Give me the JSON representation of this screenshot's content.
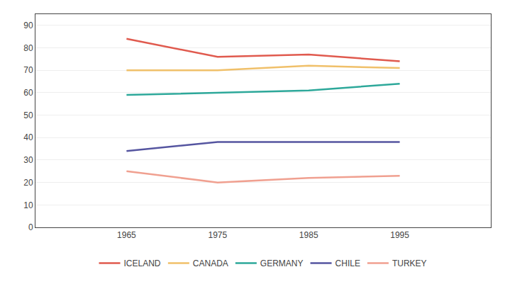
{
  "chart_data": {
    "type": "line",
    "x": [
      1965,
      1975,
      1985,
      1995
    ],
    "series": [
      {
        "name": "ICELAND",
        "color": "#e05a4e",
        "values": [
          84,
          76,
          77,
          74
        ]
      },
      {
        "name": "CANADA",
        "color": "#f0c06a",
        "values": [
          70,
          70,
          72,
          71
        ]
      },
      {
        "name": "GERMANY",
        "color": "#2da89a",
        "values": [
          59,
          60,
          61,
          64
        ]
      },
      {
        "name": "CHILE",
        "color": "#5555a0",
        "values": [
          34,
          38,
          38,
          38
        ]
      },
      {
        "name": "TURKEY",
        "color": "#f0a090",
        "values": [
          25,
          20,
          22,
          23
        ]
      }
    ],
    "xlim": [
      1955,
      2005
    ],
    "xticks": [
      1965,
      1975,
      1985,
      1995
    ],
    "ylim": [
      0,
      95
    ],
    "yticks": [
      0,
      10,
      20,
      30,
      40,
      50,
      60,
      70,
      80,
      90
    ],
    "grid": "y",
    "legend": "bottom"
  }
}
